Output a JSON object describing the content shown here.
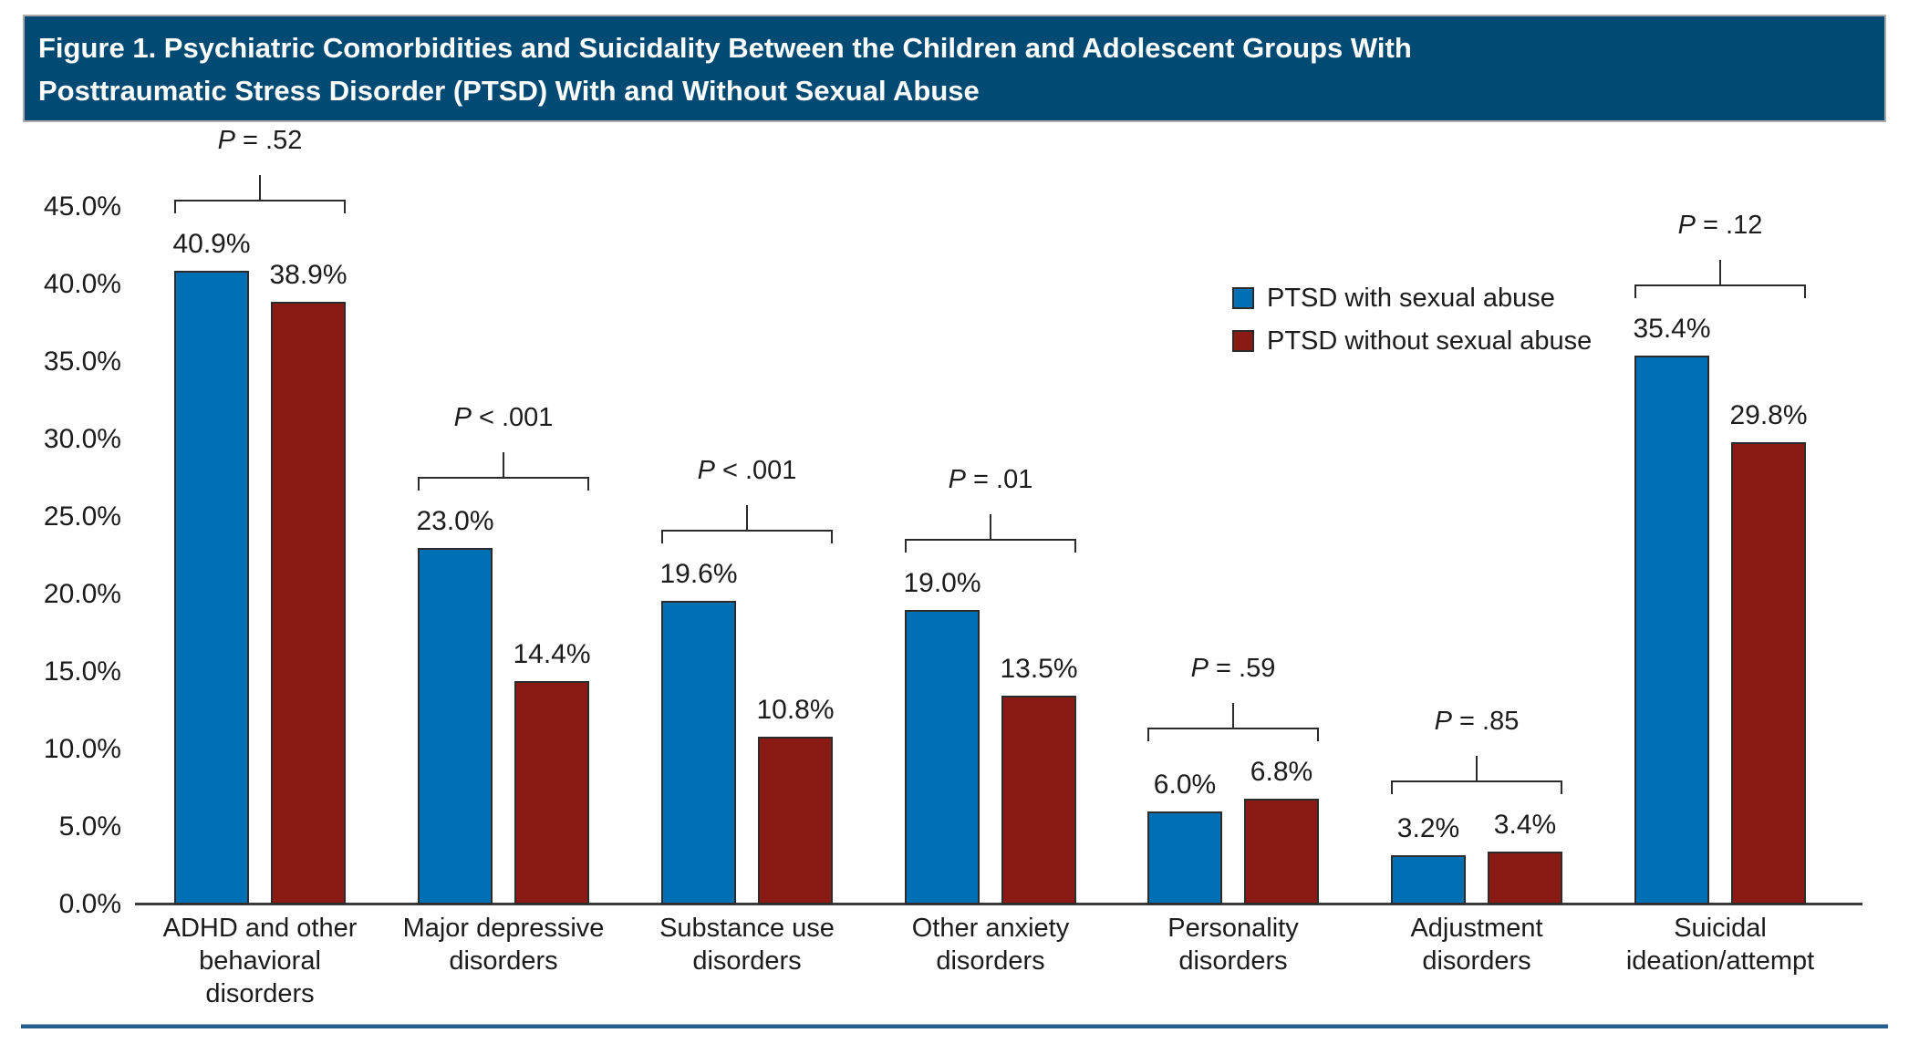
{
  "header": {
    "title_line1": "Figure 1. Psychiatric Comorbidities and Suicidality Between the Children and Adolescent Groups With",
    "title_line2": "Posttraumatic Stress Disorder (PTSD) With and Without Sexual Abuse",
    "banner_color": "#004A74"
  },
  "chart_data": {
    "type": "bar",
    "title": "Figure 1. Psychiatric Comorbidities and Suicidality Between the Children and Adolescent Groups With Posttraumatic Stress Disorder (PTSD) With and Without Sexual Abuse",
    "categories": [
      "ADHD and other behavioral disorders",
      "Major depressive disorders",
      "Substance use disorders",
      "Other anxiety disorders",
      "Personality disorders",
      "Adjustment disorders",
      "Suicidal ideation/attempt"
    ],
    "category_lines": [
      [
        "ADHD and other",
        "behavioral",
        "disorders"
      ],
      [
        "Major depressive",
        "disorders"
      ],
      [
        "Substance use",
        "disorders"
      ],
      [
        "Other anxiety",
        "disorders"
      ],
      [
        "Personality",
        "disorders"
      ],
      [
        "Adjustment",
        "disorders"
      ],
      [
        "Suicidal",
        "ideation/attempt"
      ]
    ],
    "series": [
      {
        "name": "PTSD with sexual abuse",
        "color": "#0070B5",
        "values": [
          40.9,
          23.0,
          19.6,
          19.0,
          6.0,
          3.2,
          35.4
        ],
        "labels": [
          "40.9%",
          "23.0%",
          "19.6%",
          "19.0%",
          "6.0%",
          "3.2%",
          "35.4%"
        ]
      },
      {
        "name": "PTSD without sexual abuse",
        "color": "#8C1A14",
        "values": [
          38.9,
          14.4,
          10.8,
          13.5,
          6.8,
          3.4,
          29.8
        ],
        "labels": [
          "38.9%",
          "14.4%",
          "10.8%",
          "13.5%",
          "6.8%",
          "3.4%",
          "29.8%"
        ]
      }
    ],
    "p_values": [
      "P = .52",
      "P < .001",
      "P < .001",
      "P = .01",
      "P = .59",
      "P = .85",
      "P = .12"
    ],
    "y_axis": {
      "ticks": [
        "0.0%",
        "5.0%",
        "10.0%",
        "15.0%",
        "20.0%",
        "25.0%",
        "30.0%",
        "35.0%",
        "40.0%",
        "45.0%"
      ],
      "min": 0,
      "max": 45,
      "step": 5,
      "unit": "%"
    },
    "ylim": [
      0,
      45
    ],
    "grid": false,
    "legend_position": "upper-right-inside",
    "bar_border_color": "#2b2b2b",
    "axis_color": "#3a3a3a",
    "bottom_rule_color": "#25608f"
  }
}
